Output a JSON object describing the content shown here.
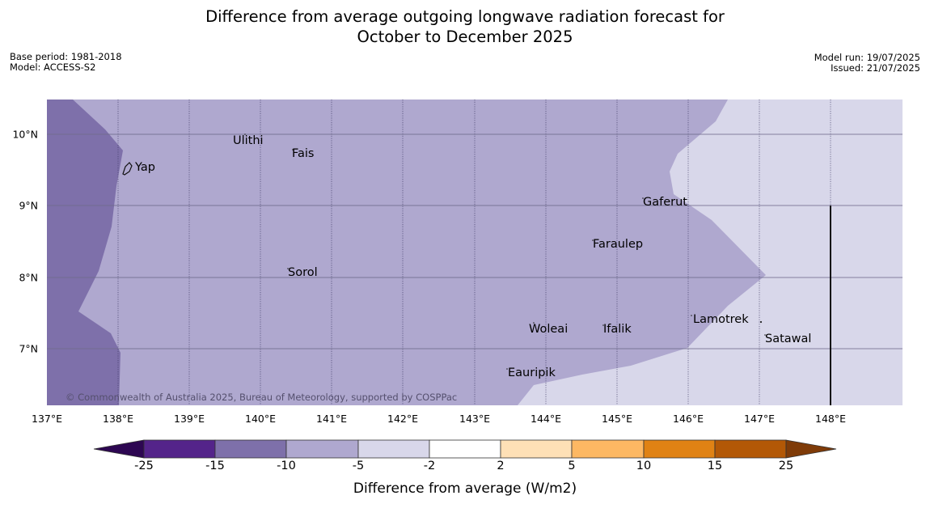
{
  "title": {
    "line1": "Difference from average outgoing longwave radiation forecast for",
    "line2": "October to December 2025"
  },
  "meta": {
    "base_period": "Base period: 1981-2018",
    "model": "Model: ACCESS-S2",
    "model_run": "Model run: 19/07/2025",
    "issued": "Issued: 21/07/2025"
  },
  "map": {
    "copyright": "© Commonwealth of Australia 2025, Bureau of Meteorology, supported by COSPPac",
    "longitude_labels": [
      "137°E",
      "138°E",
      "139°E",
      "140°E",
      "141°E",
      "142°E",
      "143°E",
      "144°E",
      "145°E",
      "146°E",
      "147°E",
      "148°E"
    ],
    "latitude_labels": [
      "10°N",
      "9°N",
      "8°N",
      "7°N"
    ],
    "places": [
      "Ulithi",
      "Fais",
      "Yap",
      "Gaferut",
      "Faraulep",
      "Sorol",
      "Lamotrek",
      "Woleai",
      "Ifalik",
      "Satawal",
      "Eauripik"
    ],
    "colors": {
      "class_minus15_minus10": "#7e70aa",
      "class_minus10_minus5": "#afa8cf",
      "class_minus5_minus2": "#d8d7ea"
    }
  },
  "legend": {
    "ticks": [
      "-25",
      "-15",
      "-10",
      "-5",
      "-2",
      "2",
      "5",
      "10",
      "15",
      "25"
    ],
    "label": "Difference from average (W/m2)",
    "colors": [
      "#2d0752",
      "#54248a",
      "#7e70aa",
      "#afa8cf",
      "#d8d7ea",
      "#ffffff",
      "#fee0b6",
      "#fdb863",
      "#e08214",
      "#b35806",
      "#7f3b08"
    ]
  }
}
